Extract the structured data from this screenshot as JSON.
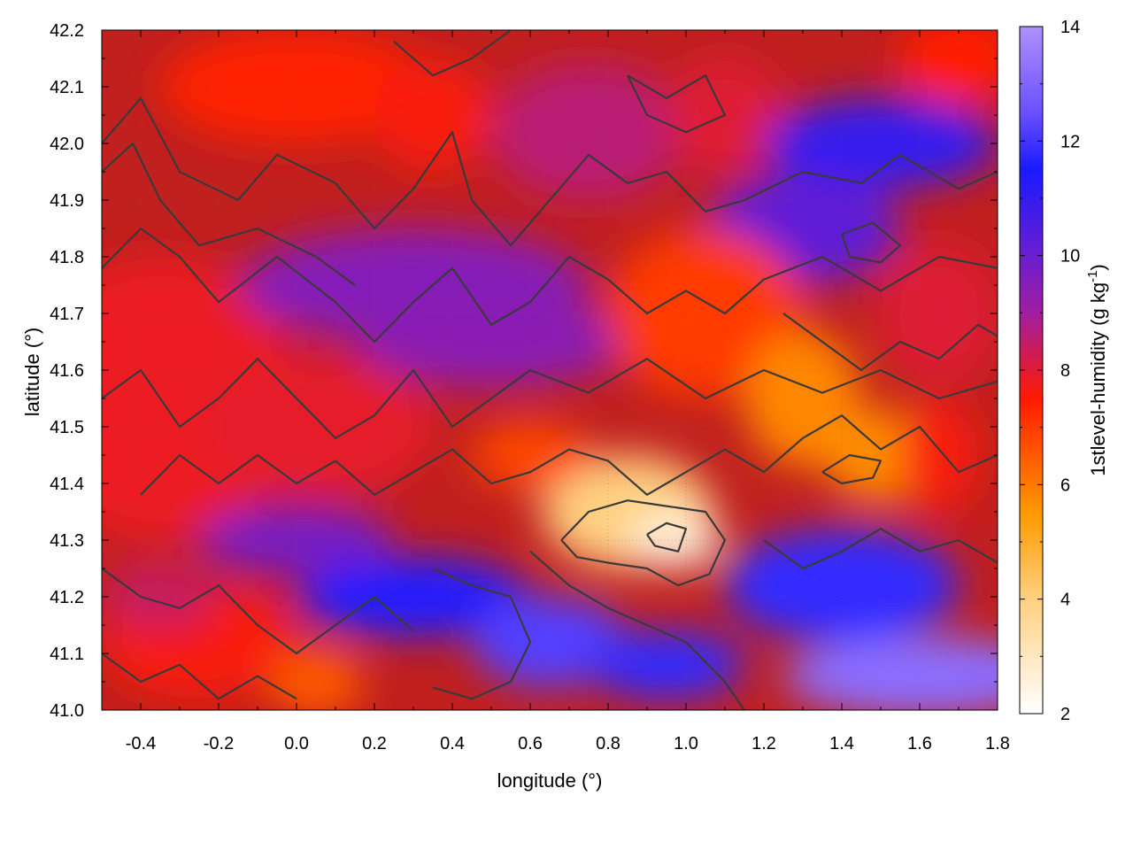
{
  "chart_data": {
    "type": "heatmap",
    "title": "",
    "xlabel": "longitude (°)",
    "ylabel": "latitude (°)",
    "colorbar_label_base": "1stlevel-humidity (g kg",
    "colorbar_label_exp": "-1",
    "colorbar_label_close": ")",
    "xlim": [
      -0.5,
      1.8
    ],
    "ylim": [
      41.0,
      42.2
    ],
    "clim": [
      2,
      14
    ],
    "x_ticks": [
      {
        "value": -0.4,
        "label": "-0.4"
      },
      {
        "value": -0.2,
        "label": "-0.2"
      },
      {
        "value": 0.0,
        "label": "0.0"
      },
      {
        "value": 0.2,
        "label": "0.2"
      },
      {
        "value": 0.4,
        "label": "0.4"
      },
      {
        "value": 0.6,
        "label": "0.6"
      },
      {
        "value": 0.8,
        "label": "0.8"
      },
      {
        "value": 1.0,
        "label": "1.0"
      },
      {
        "value": 1.2,
        "label": "1.2"
      },
      {
        "value": 1.4,
        "label": "1.4"
      },
      {
        "value": 1.6,
        "label": "1.6"
      },
      {
        "value": 1.8,
        "label": "1.8"
      }
    ],
    "y_ticks": [
      {
        "value": 41.0,
        "label": "41.0"
      },
      {
        "value": 41.1,
        "label": "41.1"
      },
      {
        "value": 41.2,
        "label": "41.2"
      },
      {
        "value": 41.3,
        "label": "41.3"
      },
      {
        "value": 41.4,
        "label": "41.4"
      },
      {
        "value": 41.5,
        "label": "41.5"
      },
      {
        "value": 41.6,
        "label": "41.6"
      },
      {
        "value": 41.7,
        "label": "41.7"
      },
      {
        "value": 41.8,
        "label": "41.8"
      },
      {
        "value": 41.9,
        "label": "41.9"
      },
      {
        "value": 42.0,
        "label": "42.0"
      },
      {
        "value": 42.1,
        "label": "42.1"
      },
      {
        "value": 42.2,
        "label": "42.2"
      }
    ],
    "c_ticks": [
      {
        "value": 2,
        "label": "2"
      },
      {
        "value": 4,
        "label": "4"
      },
      {
        "value": 6,
        "label": "6"
      },
      {
        "value": 8,
        "label": "8"
      },
      {
        "value": 10,
        "label": "10"
      },
      {
        "value": 12,
        "label": "12"
      },
      {
        "value": 14,
        "label": "14"
      }
    ],
    "colormap": [
      {
        "value": 2,
        "color": "#ffffff"
      },
      {
        "value": 4,
        "color": "#ffd080"
      },
      {
        "value": 5.5,
        "color": "#ff9a00"
      },
      {
        "value": 7.5,
        "color": "#ff1a00"
      },
      {
        "value": 9,
        "color": "#a01ea0"
      },
      {
        "value": 10,
        "color": "#6a1ed0"
      },
      {
        "value": 11.5,
        "color": "#1a1aff"
      },
      {
        "value": 12.5,
        "color": "#6a50ff"
      },
      {
        "value": 14,
        "color": "#b090ff"
      }
    ],
    "grid": true,
    "humidity_features": [
      {
        "lon": -0.35,
        "lat": 41.55,
        "value": 7.8,
        "rx": 0.35,
        "ry": 0.25
      },
      {
        "lon": 0.05,
        "lat": 41.5,
        "value": 7.9,
        "rx": 0.3,
        "ry": 0.12
      },
      {
        "lon": 0.3,
        "lat": 41.75,
        "value": 9.5,
        "rx": 0.45,
        "ry": 0.1
      },
      {
        "lon": 0.5,
        "lat": 41.65,
        "value": 9.4,
        "rx": 0.35,
        "ry": 0.08
      },
      {
        "lon": 0.0,
        "lat": 42.1,
        "value": 7.4,
        "rx": 0.35,
        "ry": 0.1
      },
      {
        "lon": 0.35,
        "lat": 42.05,
        "value": 7.6,
        "rx": 0.15,
        "ry": 0.1
      },
      {
        "lon": 0.75,
        "lat": 42.02,
        "value": 8.6,
        "rx": 0.25,
        "ry": 0.12
      },
      {
        "lon": 1.1,
        "lat": 42.05,
        "value": 8.0,
        "rx": 0.15,
        "ry": 0.1
      },
      {
        "lon": 1.5,
        "lat": 42.0,
        "value": 11.0,
        "rx": 0.3,
        "ry": 0.08
      },
      {
        "lon": 1.7,
        "lat": 42.15,
        "value": 7.5,
        "rx": 0.15,
        "ry": 0.08
      },
      {
        "lon": 1.3,
        "lat": 41.85,
        "value": 10.2,
        "rx": 0.25,
        "ry": 0.1
      },
      {
        "lon": 1.05,
        "lat": 41.7,
        "value": 7.0,
        "rx": 0.25,
        "ry": 0.15
      },
      {
        "lon": 1.3,
        "lat": 41.55,
        "value": 5.8,
        "rx": 0.15,
        "ry": 0.12
      },
      {
        "lon": 1.5,
        "lat": 41.45,
        "value": 5.7,
        "rx": 0.15,
        "ry": 0.08
      },
      {
        "lon": 1.65,
        "lat": 41.7,
        "value": 8.0,
        "rx": 0.15,
        "ry": 0.12
      },
      {
        "lon": 0.85,
        "lat": 41.35,
        "value": 4.0,
        "rx": 0.22,
        "ry": 0.1
      },
      {
        "lon": 0.97,
        "lat": 41.3,
        "value": 2.6,
        "rx": 0.12,
        "ry": 0.05
      },
      {
        "lon": 0.6,
        "lat": 41.45,
        "value": 6.8,
        "rx": 0.15,
        "ry": 0.06
      },
      {
        "lon": 0.3,
        "lat": 41.2,
        "value": 11.6,
        "rx": 0.3,
        "ry": 0.07
      },
      {
        "lon": 0.65,
        "lat": 41.12,
        "value": 12.2,
        "rx": 0.2,
        "ry": 0.08
      },
      {
        "lon": 0.95,
        "lat": 41.08,
        "value": 11.8,
        "rx": 0.2,
        "ry": 0.06
      },
      {
        "lon": 1.4,
        "lat": 41.22,
        "value": 11.8,
        "rx": 0.3,
        "ry": 0.1
      },
      {
        "lon": 1.6,
        "lat": 41.06,
        "value": 13.2,
        "rx": 0.35,
        "ry": 0.07
      },
      {
        "lon": 1.65,
        "lat": 41.45,
        "value": 7.6,
        "rx": 0.1,
        "ry": 0.1
      },
      {
        "lon": -0.25,
        "lat": 41.12,
        "value": 7.6,
        "rx": 0.25,
        "ry": 0.1
      },
      {
        "lon": 0.05,
        "lat": 41.05,
        "value": 6.5,
        "rx": 0.12,
        "ry": 0.06
      },
      {
        "lon": -0.35,
        "lat": 41.2,
        "value": 8.4,
        "rx": 0.15,
        "ry": 0.06
      },
      {
        "lon": 0.0,
        "lat": 41.3,
        "value": 9.8,
        "rx": 0.25,
        "ry": 0.06
      }
    ],
    "contour_lines": [
      [
        [
          -0.5,
          42.0
        ],
        [
          -0.4,
          42.08
        ],
        [
          -0.3,
          41.95
        ],
        [
          -0.15,
          41.9
        ],
        [
          -0.05,
          41.98
        ],
        [
          0.1,
          41.93
        ],
        [
          0.2,
          41.85
        ],
        [
          0.3,
          41.92
        ],
        [
          0.4,
          42.02
        ],
        [
          0.45,
          41.9
        ],
        [
          0.55,
          41.82
        ],
        [
          0.65,
          41.9
        ],
        [
          0.75,
          41.98
        ],
        [
          0.85,
          41.93
        ],
        [
          0.95,
          41.95
        ],
        [
          1.05,
          41.88
        ],
        [
          1.15,
          41.9
        ],
        [
          1.3,
          41.95
        ],
        [
          1.45,
          41.93
        ],
        [
          1.55,
          41.98
        ],
        [
          1.7,
          41.92
        ],
        [
          1.8,
          41.95
        ]
      ],
      [
        [
          -0.5,
          41.78
        ],
        [
          -0.4,
          41.85
        ],
        [
          -0.3,
          41.8
        ],
        [
          -0.2,
          41.72
        ],
        [
          -0.05,
          41.8
        ],
        [
          0.1,
          41.72
        ],
        [
          0.2,
          41.65
        ],
        [
          0.3,
          41.72
        ],
        [
          0.4,
          41.78
        ],
        [
          0.5,
          41.68
        ],
        [
          0.6,
          41.72
        ],
        [
          0.7,
          41.8
        ],
        [
          0.8,
          41.76
        ],
        [
          0.9,
          41.7
        ],
        [
          1.0,
          41.74
        ],
        [
          1.1,
          41.7
        ],
        [
          1.2,
          41.76
        ],
        [
          1.35,
          41.8
        ],
        [
          1.5,
          41.74
        ],
        [
          1.65,
          41.8
        ],
        [
          1.8,
          41.78
        ]
      ],
      [
        [
          -0.5,
          41.55
        ],
        [
          -0.4,
          41.6
        ],
        [
          -0.3,
          41.5
        ],
        [
          -0.2,
          41.55
        ],
        [
          -0.1,
          41.62
        ],
        [
          0.0,
          41.55
        ],
        [
          0.1,
          41.48
        ],
        [
          0.2,
          41.52
        ],
        [
          0.3,
          41.6
        ],
        [
          0.4,
          41.5
        ],
        [
          0.5,
          41.55
        ],
        [
          0.6,
          41.6
        ],
        [
          0.75,
          41.56
        ],
        [
          0.9,
          41.62
        ],
        [
          1.05,
          41.55
        ],
        [
          1.2,
          41.6
        ],
        [
          1.35,
          41.56
        ],
        [
          1.5,
          41.6
        ],
        [
          1.65,
          41.55
        ],
        [
          1.8,
          41.58
        ]
      ],
      [
        [
          -0.4,
          41.38
        ],
        [
          -0.3,
          41.45
        ],
        [
          -0.2,
          41.4
        ],
        [
          -0.1,
          41.45
        ],
        [
          0.0,
          41.4
        ],
        [
          0.1,
          41.44
        ],
        [
          0.2,
          41.38
        ],
        [
          0.3,
          41.42
        ],
        [
          0.4,
          41.46
        ],
        [
          0.5,
          41.4
        ],
        [
          0.6,
          41.42
        ],
        [
          0.7,
          41.46
        ],
        [
          0.8,
          41.44
        ],
        [
          0.9,
          41.38
        ],
        [
          1.0,
          41.42
        ],
        [
          1.1,
          41.46
        ],
        [
          1.2,
          41.42
        ],
        [
          1.3,
          41.48
        ],
        [
          1.4,
          41.52
        ],
        [
          1.5,
          41.46
        ],
        [
          1.6,
          41.5
        ],
        [
          1.7,
          41.42
        ],
        [
          1.8,
          41.45
        ]
      ],
      [
        [
          0.68,
          41.3
        ],
        [
          0.75,
          41.35
        ],
        [
          0.85,
          41.37
        ],
        [
          0.95,
          41.36
        ],
        [
          1.05,
          41.35
        ],
        [
          1.1,
          41.3
        ],
        [
          1.06,
          41.24
        ],
        [
          0.98,
          41.22
        ],
        [
          0.9,
          41.25
        ],
        [
          0.8,
          41.26
        ],
        [
          0.72,
          41.27
        ],
        [
          0.68,
          41.3
        ]
      ],
      [
        [
          0.9,
          41.31
        ],
        [
          0.95,
          41.33
        ],
        [
          1.0,
          41.32
        ],
        [
          0.98,
          41.28
        ],
        [
          0.92,
          41.29
        ],
        [
          0.9,
          41.31
        ]
      ],
      [
        [
          0.35,
          41.25
        ],
        [
          0.45,
          41.22
        ],
        [
          0.55,
          41.2
        ],
        [
          0.6,
          41.12
        ],
        [
          0.55,
          41.05
        ],
        [
          0.45,
          41.02
        ],
        [
          0.35,
          41.04
        ]
      ],
      [
        [
          0.6,
          41.28
        ],
        [
          0.7,
          41.22
        ],
        [
          0.8,
          41.18
        ],
        [
          0.9,
          41.15
        ],
        [
          1.0,
          41.12
        ],
        [
          1.1,
          41.05
        ],
        [
          1.15,
          41.0
        ]
      ],
      [
        [
          -0.5,
          41.25
        ],
        [
          -0.4,
          41.2
        ],
        [
          -0.3,
          41.18
        ],
        [
          -0.2,
          41.22
        ],
        [
          -0.1,
          41.15
        ],
        [
          0.0,
          41.1
        ],
        [
          0.1,
          41.15
        ],
        [
          0.2,
          41.2
        ],
        [
          0.3,
          41.14
        ]
      ],
      [
        [
          -0.5,
          41.1
        ],
        [
          -0.4,
          41.05
        ],
        [
          -0.3,
          41.08
        ],
        [
          -0.2,
          41.02
        ],
        [
          -0.1,
          41.06
        ],
        [
          0.0,
          41.02
        ]
      ],
      [
        [
          1.2,
          41.3
        ],
        [
          1.3,
          41.25
        ],
        [
          1.4,
          41.28
        ],
        [
          1.5,
          41.32
        ],
        [
          1.6,
          41.28
        ],
        [
          1.7,
          41.3
        ],
        [
          1.8,
          41.26
        ]
      ],
      [
        [
          1.35,
          41.42
        ],
        [
          1.42,
          41.45
        ],
        [
          1.5,
          41.44
        ],
        [
          1.48,
          41.41
        ],
        [
          1.4,
          41.4
        ],
        [
          1.35,
          41.42
        ]
      ],
      [
        [
          -0.5,
          41.95
        ],
        [
          -0.42,
          42.0
        ],
        [
          -0.35,
          41.9
        ],
        [
          -0.25,
          41.82
        ],
        [
          -0.1,
          41.85
        ],
        [
          0.05,
          41.8
        ],
        [
          0.15,
          41.75
        ]
      ],
      [
        [
          0.85,
          42.12
        ],
        [
          0.95,
          42.08
        ],
        [
          1.05,
          42.12
        ],
        [
          1.1,
          42.05
        ],
        [
          1.0,
          42.02
        ],
        [
          0.9,
          42.05
        ],
        [
          0.85,
          42.12
        ]
      ],
      [
        [
          1.4,
          41.84
        ],
        [
          1.48,
          41.86
        ],
        [
          1.55,
          41.82
        ],
        [
          1.5,
          41.79
        ],
        [
          1.42,
          41.8
        ],
        [
          1.4,
          41.84
        ]
      ],
      [
        [
          0.25,
          42.18
        ],
        [
          0.35,
          42.12
        ],
        [
          0.45,
          42.15
        ],
        [
          0.55,
          42.2
        ]
      ],
      [
        [
          1.25,
          41.7
        ],
        [
          1.35,
          41.65
        ],
        [
          1.45,
          41.6
        ],
        [
          1.55,
          41.65
        ],
        [
          1.65,
          41.62
        ],
        [
          1.75,
          41.68
        ],
        [
          1.8,
          41.66
        ]
      ]
    ]
  }
}
